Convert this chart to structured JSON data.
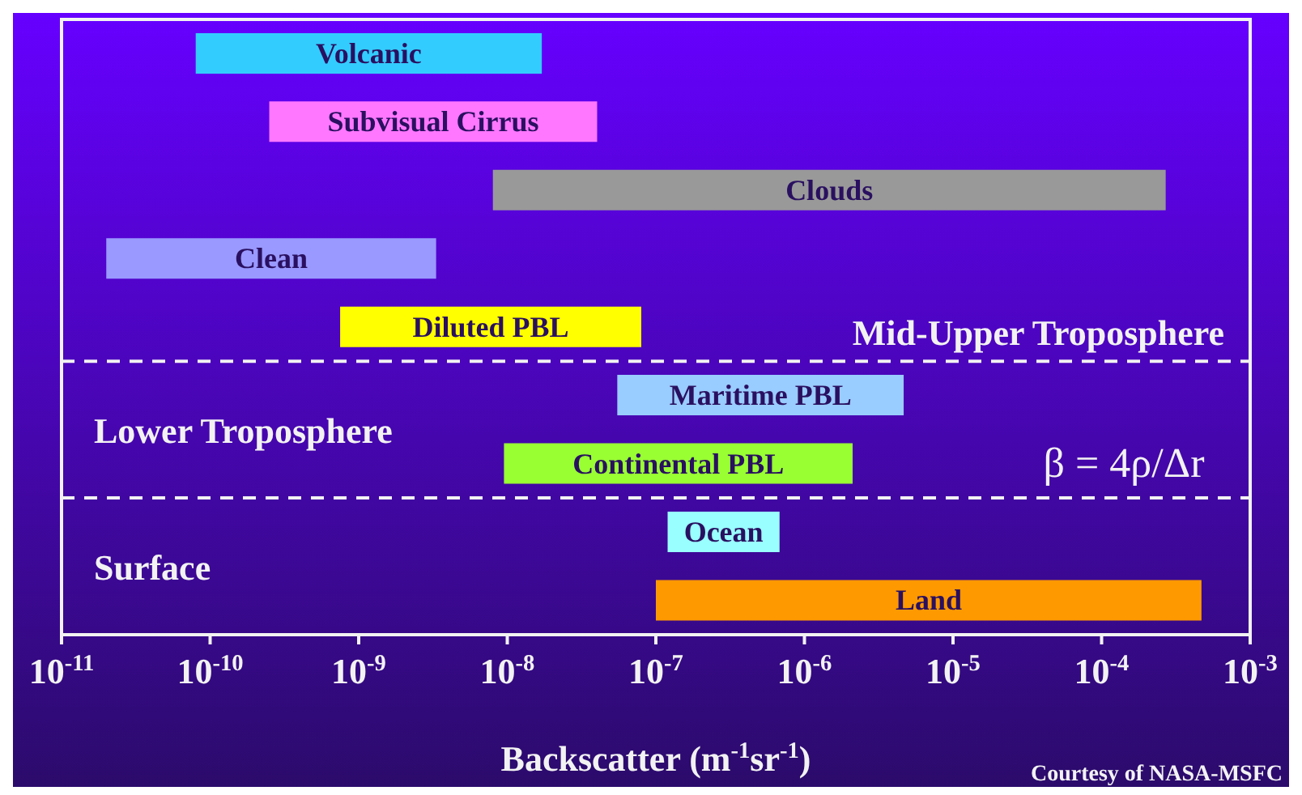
{
  "chart_data": {
    "type": "bar",
    "orientation": "horizontal",
    "log": "x",
    "categories": [
      null,
      null,
      null,
      null,
      null,
      null,
      null,
      null,
      null
    ],
    "base": [
      8e-11,
      2.5e-10,
      8e-09,
      2e-11,
      7.5e-10,
      5.5e-08,
      9.5e-09,
      1.2e-07,
      1e-07
    ],
    "values": [
      1.7e-08,
      4e-08,
      0.00027,
      3.3e-09,
      7.9e-08,
      4.6e-06,
      2.1e-06,
      5.6e-07,
      0.00047
    ],
    "colors": [
      "#33ccff",
      "#ff77ff",
      "#999999",
      "#9999ff",
      "#ffff00",
      "#99ccff",
      "#99ff33",
      "#99ffff",
      "#ff9900"
    ],
    "xlabel": "Backscatter (m$^{-1}$sr$^{-1}$)",
    "xlim": [
      1e-11,
      0.001
    ],
    "xticks": [
      {
        "value": 1e-11,
        "label": "10$^{-11}$"
      },
      {
        "value": 1e-10,
        "label": "10$^{-10}$"
      },
      {
        "value": 1e-09,
        "label": "10$^{-9}$"
      },
      {
        "value": 1e-08,
        "label": "10$^{-8}$"
      },
      {
        "value": 1e-07,
        "label": "10$^{-7}$"
      },
      {
        "value": 1e-06,
        "label": "10$^{-6}$"
      },
      {
        "value": 1e-05,
        "label": "10$^{-5}$"
      },
      {
        "value": 0.0001,
        "label": "10$^{-4}$"
      },
      {
        "value": 0.001,
        "label": "10$^{-3}$"
      }
    ],
    "tick_labels": "x",
    "annotations": [
      "Volcanic",
      "Subvisual Cirrus",
      "Clouds",
      "Clean",
      "Diluted PBL",
      "Maritime PBL",
      "Continental PBL",
      "Ocean",
      "Land",
      "Mid-Upper Troposphere",
      "Lower Troposphere",
      "Surface",
      "β = 4ρ/Δr",
      "Courtesy of NASA-MSFC"
    ]
  }
}
